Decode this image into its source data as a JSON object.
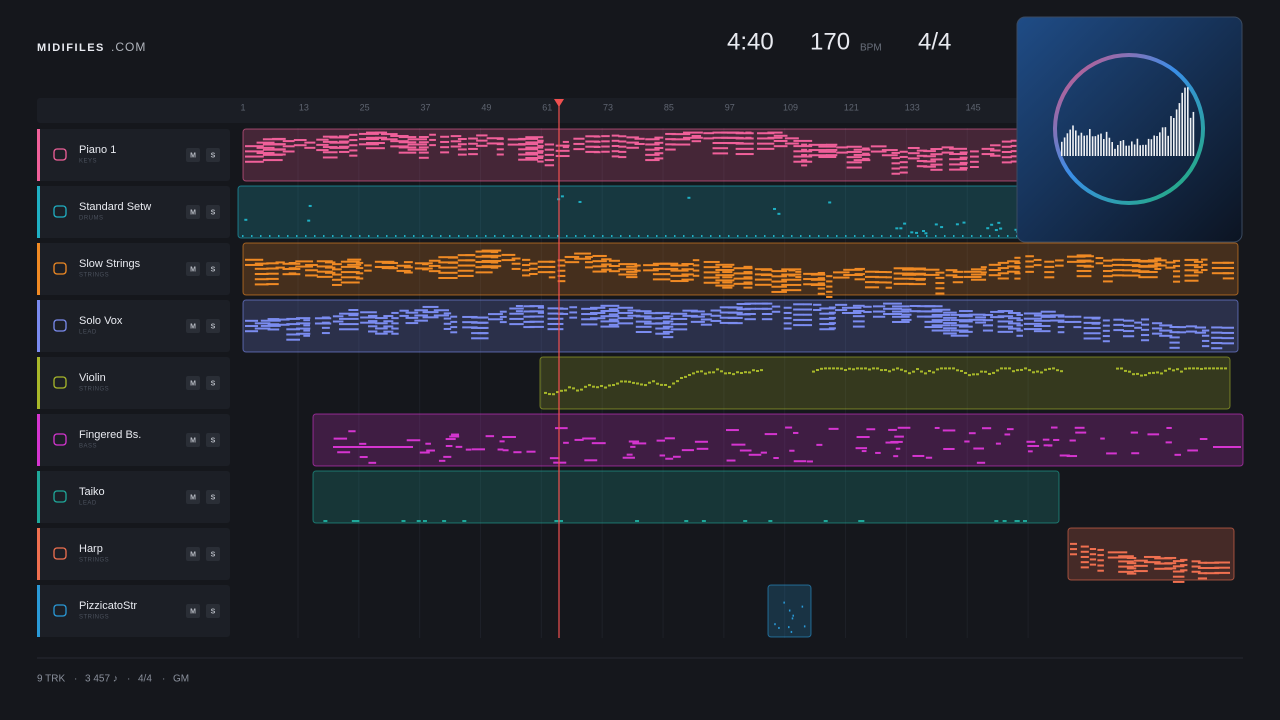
{
  "header": {
    "brand": "MIDIFILES",
    "domain": ".COM",
    "duration": "4:40",
    "tempo": "170",
    "tempo_unit": "BPM",
    "meter": "4/4"
  },
  "ruler": [
    1,
    13,
    25,
    37,
    49,
    61,
    73,
    85,
    97,
    109,
    121,
    133,
    145
  ],
  "tracks": [
    {
      "name": "Piano 1",
      "category": "KEYS",
      "mute": "M",
      "solo": "S",
      "color": "#f0609a"
    },
    {
      "name": "Standard Setw",
      "category": "DRUMS",
      "mute": "M",
      "solo": "S",
      "color": "#1fb0c4"
    },
    {
      "name": "Slow Strings",
      "category": "STRINGS",
      "mute": "M",
      "solo": "S",
      "color": "#f08a24"
    },
    {
      "name": "Solo Vox",
      "category": "LEAD",
      "mute": "M",
      "solo": "S",
      "color": "#7b8cf0"
    },
    {
      "name": "Violin",
      "category": "STRINGS",
      "mute": "M",
      "solo": "S",
      "color": "#a8b82a"
    },
    {
      "name": "Fingered Bs.",
      "category": "BASS",
      "mute": "M",
      "solo": "S",
      "color": "#d535d0"
    },
    {
      "name": "Taiko",
      "category": "LEAD",
      "mute": "M",
      "solo": "S",
      "color": "#1fa89a"
    },
    {
      "name": "Harp",
      "category": "STRINGS",
      "mute": "M",
      "solo": "S",
      "color": "#f07050"
    },
    {
      "name": "PizzicatoStr",
      "category": "STRINGS",
      "mute": "M",
      "solo": "S",
      "color": "#2a9ad8"
    }
  ],
  "footer": {
    "tracks": "9 TRK",
    "notes": "3 457 ♪",
    "meter": "4/4",
    "standard": "GM",
    "separator": "·"
  }
}
